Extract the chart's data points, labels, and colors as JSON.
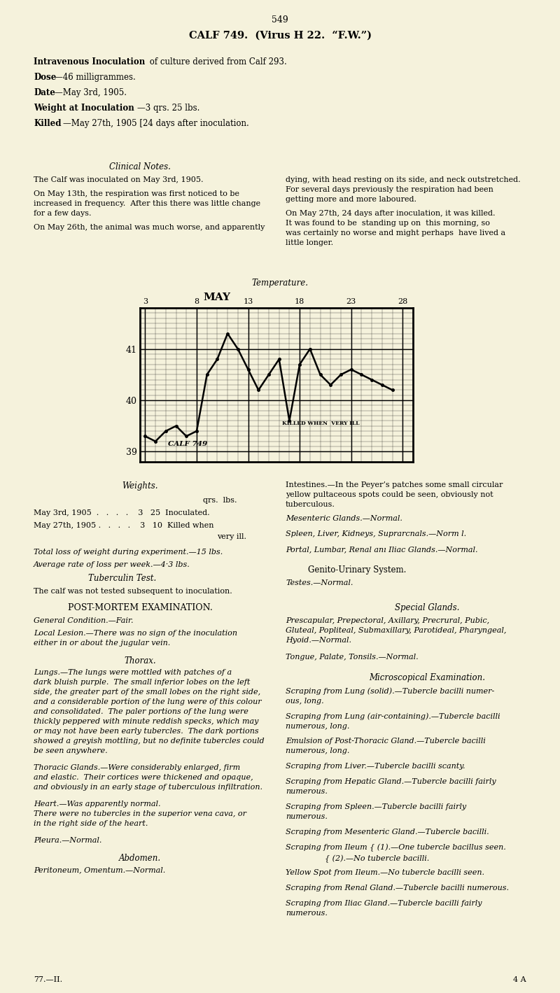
{
  "page_number": "549",
  "title": "CALF 749.  (Virus H 22.  “F.W.”)",
  "bg_color": "#f5f2dc",
  "clinical_notes_title": "Clinical Notes.",
  "temp_label": "Temperature.",
  "chart_month": "MAY",
  "chart_x_labels": [
    "3",
    "8",
    "13",
    "18",
    "23",
    "28"
  ],
  "chart_ylim": [
    38.8,
    41.8
  ],
  "chart_xlim": [
    2.5,
    29.0
  ],
  "temp_data_x": [
    3,
    4,
    5,
    6,
    7,
    8,
    9,
    10,
    11,
    12,
    13,
    14,
    15,
    16,
    17,
    18,
    19,
    20,
    21,
    22,
    23,
    24,
    25,
    26,
    27
  ],
  "temp_data_y": [
    39.3,
    39.2,
    39.4,
    39.5,
    39.3,
    39.4,
    40.5,
    40.8,
    41.3,
    41.0,
    40.6,
    40.2,
    40.5,
    40.8,
    39.6,
    40.7,
    41.0,
    40.5,
    40.3,
    40.5,
    40.6,
    40.5,
    40.4,
    40.3,
    40.2
  ],
  "weights_title": "Weights.",
  "weights_total": "Total loss of weight during experiment.—15 lbs.",
  "weights_avg": "Average rate of loss per week.—4·3 lbs.",
  "tuberculin_title": "Tuberculin Test.",
  "tuberculin_text": "The calf was not tested subsequent to inoculation.",
  "postmortem_title": "POST-MORTEM EXAMINATION.",
  "general_condition": "General Condition.—Fair.",
  "local_lesion": "Local Lesion.—There was no sign of the inoculation\neither in or about the jugular vein.",
  "thorax_title": "Thorax.",
  "lungs_text": "Lungs.—The lungs were mottled with patches of a\ndark bluish purple.  The small inferior lobes on the left\nside, the greater part of the small lobes on the right side,\nand a considerable portion of the lung were of this colour\nand consolidated.  The paler portions of the lung were\nthickly peppered with minute reddish specks, which may\nor may not have been early tubercles.  The dark portions\nshowed a greyish mottling, but no definite tubercles could\nbe seen anywhere.",
  "thoracic_glands_text": "Thoracic Glands.—Were considerably enlarged, firm\nand elastic.  Their cortices were thickened and opaque,\nand obviously in an early stage of tuberculous infiltration.",
  "heart_text": "Heart.—Was apparently normal.\nThere were no tubercles in the superior vena cava, or\nin the right side of the heart.",
  "pleura_text": "Pleura.—Normal.",
  "abdomen_title": "Abdomen.",
  "peritoneum_text": "Peritoneum, Omentum.—Normal.",
  "intestines_text": "Intestines.—In the Peyer’s patches some small circular\nyellow pultaceous spots could be seen, obviously not\ntuberculous.",
  "mesenteric_text": "Mesenteric Glands.—Normal.",
  "spleen_text": "Spleen, Liver, Kidneys, Suprarcnals.—Norm l.",
  "portal_text": "Portal, Lumbar, Renal anı Iliac Glands.—Normal.",
  "genito_text": "Genito-Urinary System.",
  "testes_text": "Testes.—Normal.",
  "special_glands_title": "Special Glands.",
  "special_glands_text": "Prescapular, Prepectoral, Axillary, Precrural, Pubic,\nGluteal, Popliteal, Submaxillary, Parotideal, Pharyngeal,\nHyoid.—Normal.",
  "tongue_text": "Tongue, Palate, Tonsils.—Normal.",
  "microscopical_title": "Microscopical Examination.",
  "microscopical_items": [
    "Scraping from Lung (solid).—Tubercle bacilli numer-\nous, long.",
    "Scraping from Lung (air-containing).—Tubercle bacilli\nnumerous, long.",
    "Emulsion of Post-Thoracic Gland.—Tubercle bacilli\nnumerous, long.",
    "Scraping from Liver.—Tubercle bacilli scanty.",
    "Scraping from Hepatic Gland.—Tubercle bacilli fairly\nnumerous.",
    "Scraping from Spleen.—Tubercle bacilli fairly\nnumerous.",
    "Scraping from Mesenteric Gland.—Tubercle bacilli.",
    "Scraping from Ileum { (1).—One tubercle bacillus seen.\n                { (2).—No tubercle bacilli.",
    "Yellow Spot from Ileum.—No tubercle bacilli seen.",
    "Scraping from Renal Gland.—Tubercle bacilli numerous.",
    "Scraping from Iliac Gland.—Tubercle bacilli fairly\nnumerous."
  ],
  "footer_left": "77.—II.",
  "footer_right": "4 A"
}
